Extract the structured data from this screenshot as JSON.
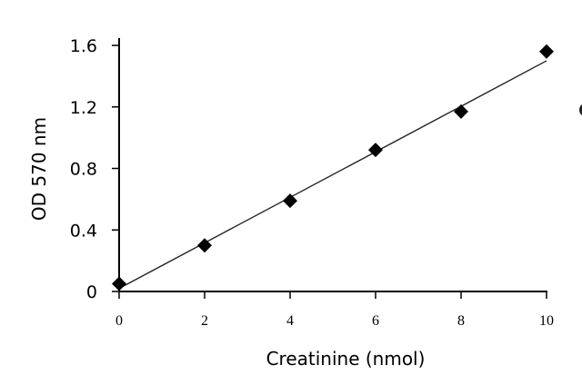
{
  "chart_data": {
    "type": "scatter",
    "title": "",
    "xlabel": "Creatinine  (nmol)",
    "ylabel": "OD 570 nm",
    "xlim": [
      0,
      10
    ],
    "ylim": [
      0,
      1.6
    ],
    "x_ticks": [
      "0",
      "2",
      "4",
      "6",
      "8",
      "10"
    ],
    "y_ticks": [
      "0",
      "0.4",
      "0.8",
      "1.2",
      "1.6"
    ],
    "grid": false,
    "marker": "diamond",
    "marker_color": "#000000",
    "series": [
      {
        "x": [
          0,
          2,
          4,
          6,
          8,
          10
        ],
        "y": [
          0.05,
          0.3,
          0.59,
          0.92,
          1.17,
          1.56
        ]
      }
    ],
    "trendline": {
      "type": "linear",
      "x": [
        0,
        10
      ],
      "y": [
        0.02,
        1.5
      ]
    }
  }
}
